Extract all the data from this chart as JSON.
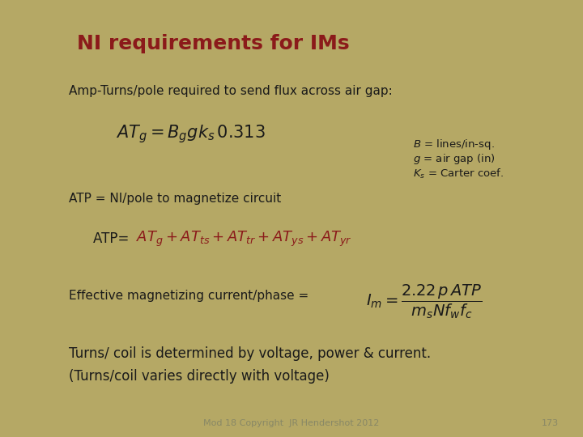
{
  "title": "NI requirements for IMs",
  "title_color": "#8B1A1A",
  "bg_color": "#B5A865",
  "text_color": "#1a1a1a",
  "red_color": "#8B1A1A",
  "line1": "Amp-Turns/pole required to send flux across air gap:",
  "formula1": "$AT_g = B_g g k_s\\, 0.313$",
  "label1": "ATP = NI/pole to magnetize circuit",
  "side_note_b": "$B$ = lines/in-sq.",
  "side_note_g": "$g$ = air gap (in)",
  "side_note_k": "$K_s$ = Carter coef.",
  "atp_prefix": "ATP= ",
  "atp_formula": "$AT_g + AT_{ts} + AT_{tr} + AT_{ys} + AT_{yr}$",
  "label2": "Effective magnetizing current/phase = ",
  "formula3": "$I_m = \\dfrac{2.22\\,p\\,ATP}{m_s N f_w f_c}$",
  "line_bottom1": "Turns/ coil is determined by voltage, power & current.",
  "line_bottom2": "(Turns/coil varies directly with voltage)",
  "footer": "Mod 18 Copyright  JR Hendershot 2012",
  "page": "173"
}
